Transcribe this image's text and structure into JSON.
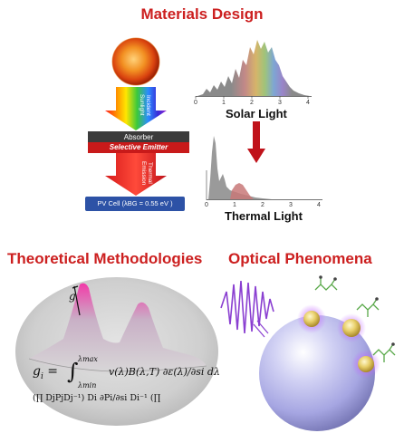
{
  "headings": {
    "materials": "Materials Design",
    "theory": "Theoretical Methodologies",
    "optical": "Optical Phenomena"
  },
  "materials_panel": {
    "incident_label": "Incident Sunlight",
    "absorber_label": "Absorber",
    "emitter_label": "Selective Emitter",
    "thermal_emission_label": "Thermal Emission",
    "pv_cell_label": "PV Cell (λBG = 0.55 eV )",
    "solar_label": "Solar Light",
    "thermal_label": "Thermal Light",
    "solar_axis_ticks": [
      "0",
      "1",
      "2",
      "3",
      "4"
    ],
    "thermal_axis_ticks": [
      "0",
      "1",
      "2",
      "3",
      "4"
    ]
  },
  "theory_panel": {
    "surface_label": "g",
    "equation_lhs": "g",
    "equation_sub": "i",
    "equation_upper": "λmax",
    "equation_lower": "λmin",
    "equation_body": "v(λ)B(λ,T) ∂ε(λ)/∂si dλ",
    "equation_line2": "(∏ DjPjDj⁻¹) Di ∂Pi/∂si Di⁻¹ (∏"
  },
  "colors": {
    "heading": "#cc1f1f",
    "emitter": "#c81a1a",
    "pv_cell": "#2d52a6",
    "arrow": "#c0121a",
    "laser": "#8a3fd1",
    "sphere": "#b8b8ee"
  }
}
